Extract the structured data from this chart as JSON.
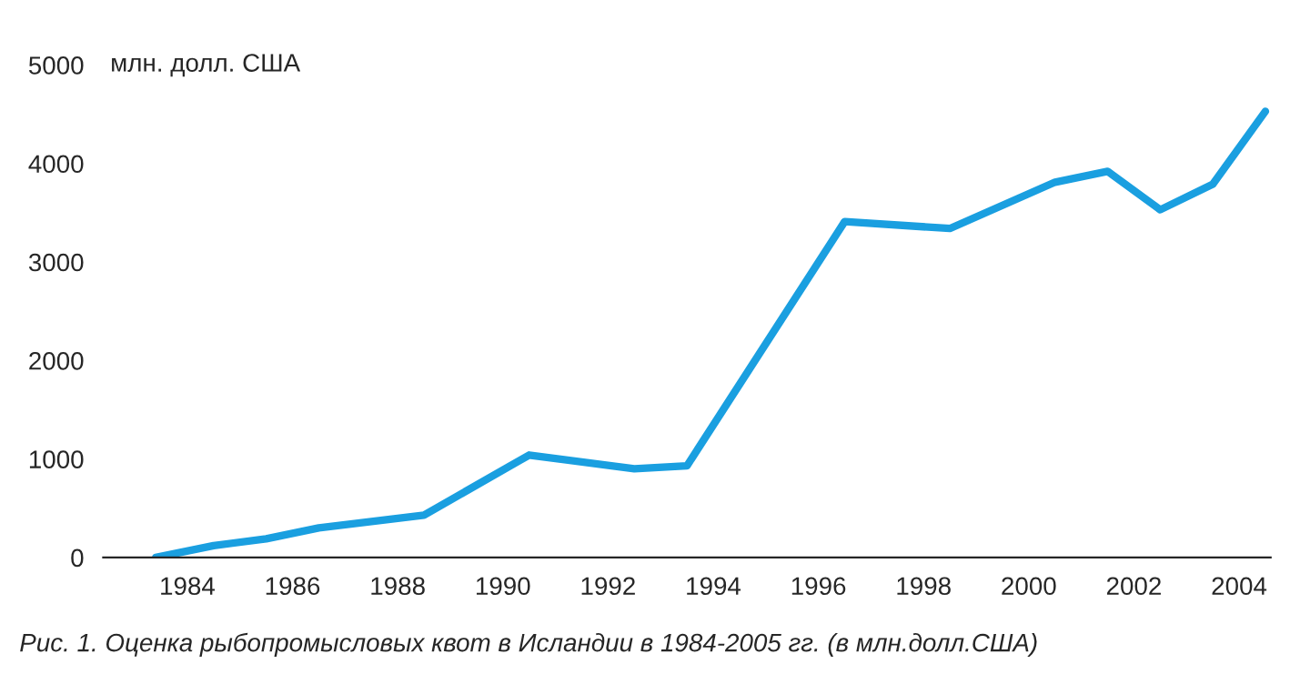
{
  "chart_data": {
    "type": "line",
    "ylabel": "млн. долл. США",
    "annotations": [
      "Рис. 1. Оценка рыбопромысловых квот в Исландии в 1984-2005 гг. (в млн.долл.США)"
    ],
    "series": [
      {
        "color": "#1a9fe0",
        "x": [
          1983.4,
          1984.5,
          1985.5,
          1986.5,
          1988.5,
          1990.5,
          1992.5,
          1993.5,
          1996.5,
          1998.5,
          2000.5,
          2001.5,
          2002.5,
          2003.5,
          2004.5
        ],
        "values": [
          0,
          120,
          190,
          300,
          430,
          1040,
          900,
          930,
          3410,
          3340,
          3810,
          3920,
          3530,
          3790,
          4530
        ]
      }
    ],
    "xlim": [
      1982.4,
      2004.6
    ],
    "xticks": [
      1984,
      1986,
      1988,
      1990,
      1992,
      1994,
      1996,
      1998,
      2000,
      2002,
      2004
    ],
    "ylim": [
      0,
      5000
    ],
    "yticks": [
      0,
      1000,
      2000,
      3000,
      4000,
      5000
    ],
    "grid": false,
    "legend": false,
    "marker": "none",
    "line_style": "solid"
  }
}
